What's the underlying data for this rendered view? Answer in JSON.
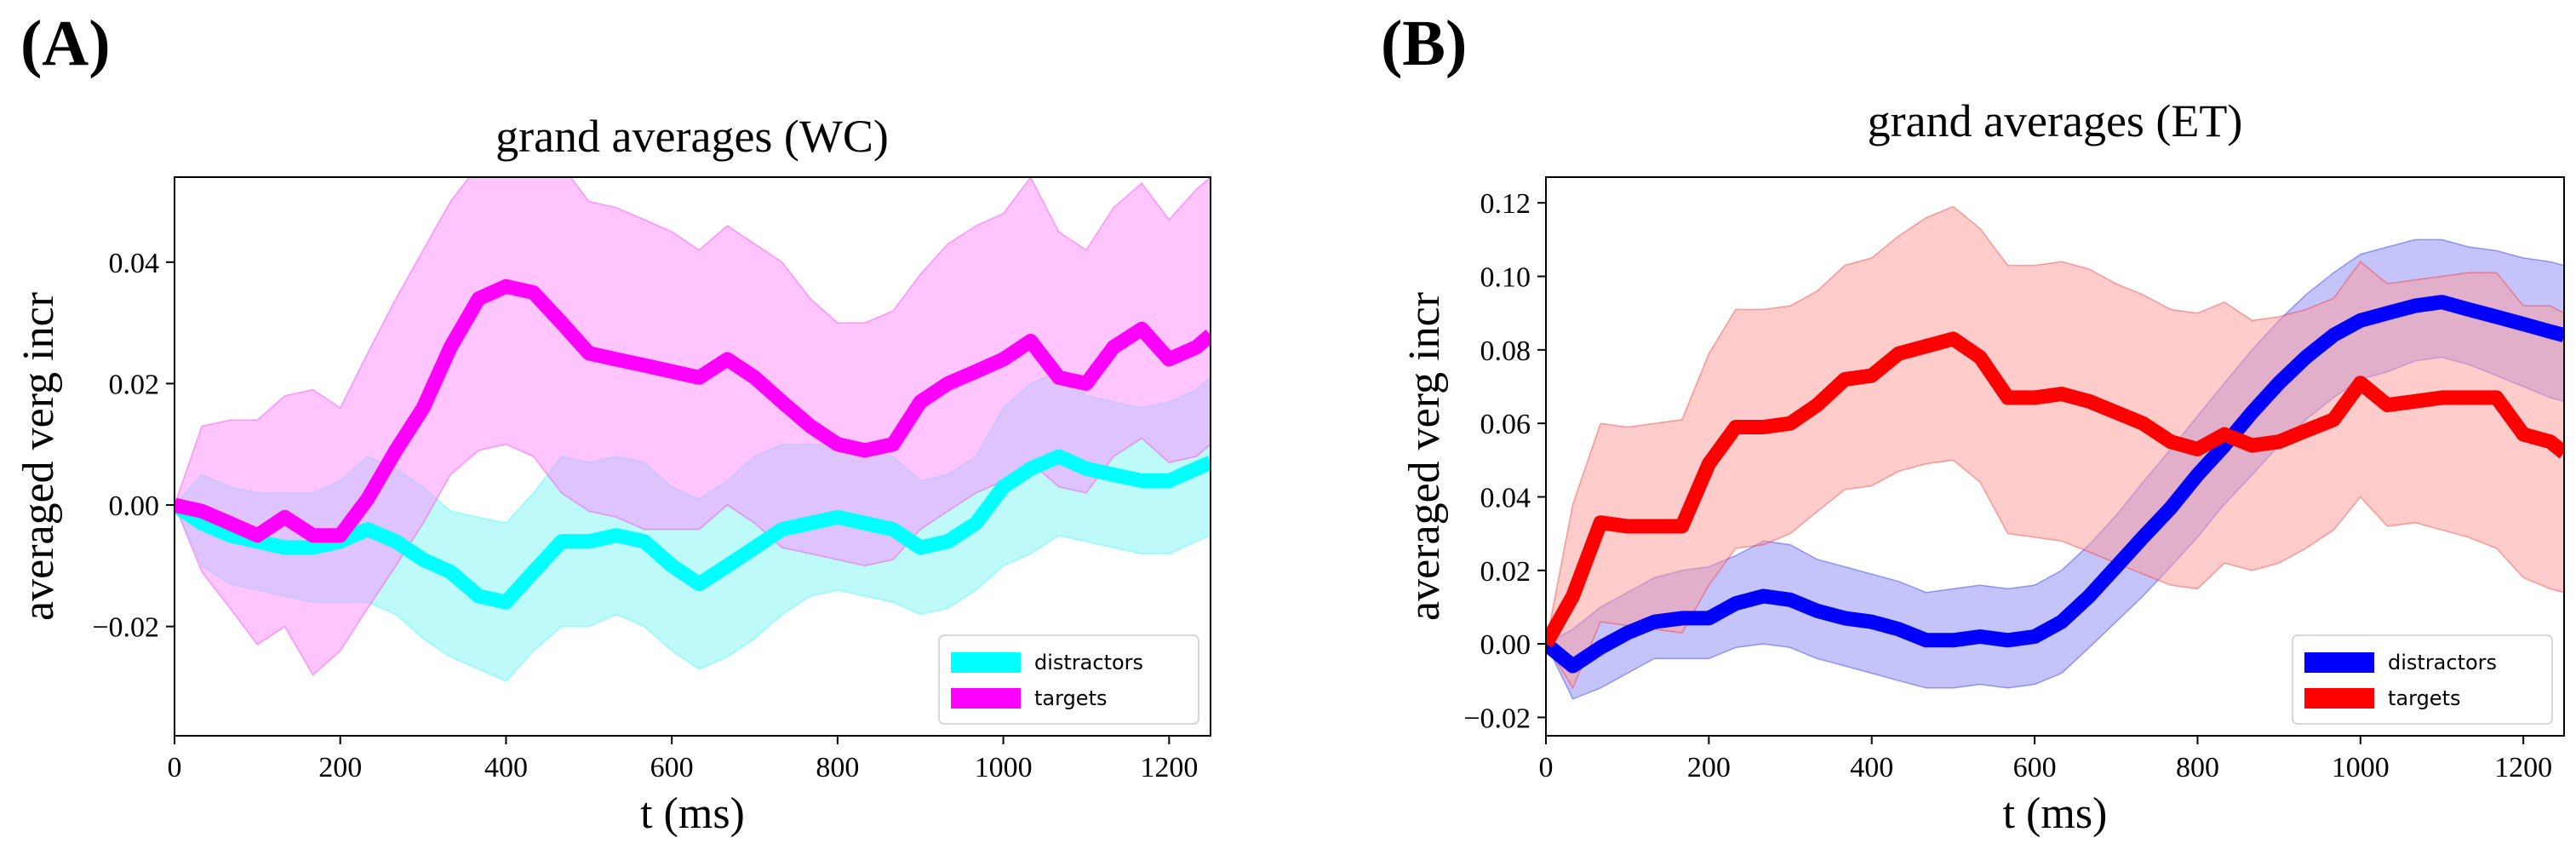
{
  "panels": [
    {
      "letter": "(A)"
    },
    {
      "letter": "(B)"
    }
  ],
  "chart_data": [
    {
      "type": "line",
      "title": "grand averages (WC)",
      "xlabel": "t (ms)",
      "ylabel": "averaged verg incr",
      "xlim": [
        0,
        1250
      ],
      "ylim": [
        -0.038,
        0.054
      ],
      "xticks": [
        0,
        200,
        400,
        600,
        800,
        1000,
        1200
      ],
      "yticks": [
        -0.02,
        0.0,
        0.02,
        0.04
      ],
      "ytick_labels": [
        "−0.02",
        "0.00",
        "0.02",
        "0.04"
      ],
      "grid": false,
      "legend_position": "bottom-right",
      "x": [
        0,
        33,
        67,
        100,
        133,
        167,
        200,
        233,
        267,
        300,
        333,
        367,
        400,
        433,
        467,
        500,
        533,
        567,
        600,
        633,
        667,
        700,
        733,
        767,
        800,
        833,
        867,
        900,
        933,
        967,
        1000,
        1033,
        1067,
        1100,
        1133,
        1167,
        1200,
        1233,
        1250
      ],
      "series": [
        {
          "name": "distractors",
          "color": "#00ffff",
          "band_color": "#7ff5f5",
          "values": [
            0,
            -0.003,
            -0.005,
            -0.006,
            -0.007,
            -0.007,
            -0.006,
            -0.004,
            -0.006,
            -0.009,
            -0.011,
            -0.015,
            -0.016,
            -0.011,
            -0.006,
            -0.006,
            -0.005,
            -0.006,
            -0.01,
            -0.013,
            -0.01,
            -0.007,
            -0.004,
            -0.003,
            -0.002,
            -0.003,
            -0.004,
            -0.007,
            -0.006,
            -0.003,
            0.003,
            0.006,
            0.008,
            0.006,
            0.005,
            0.004,
            0.004,
            0.006,
            0.007
          ],
          "lower": [
            0,
            -0.01,
            -0.013,
            -0.014,
            -0.015,
            -0.016,
            -0.016,
            -0.016,
            -0.018,
            -0.022,
            -0.025,
            -0.027,
            -0.029,
            -0.024,
            -0.02,
            -0.02,
            -0.018,
            -0.02,
            -0.024,
            -0.027,
            -0.025,
            -0.022,
            -0.018,
            -0.015,
            -0.014,
            -0.015,
            -0.016,
            -0.018,
            -0.017,
            -0.014,
            -0.01,
            -0.008,
            -0.005,
            -0.006,
            -0.007,
            -0.008,
            -0.008,
            -0.006,
            -0.005
          ],
          "upper": [
            0,
            0.005,
            0.003,
            0.002,
            0.002,
            0.002,
            0.004,
            0.008,
            0.006,
            0.003,
            -0.001,
            -0.002,
            -0.003,
            0.002,
            0.008,
            0.007,
            0.008,
            0.007,
            0.003,
            0.001,
            0.004,
            0.008,
            0.01,
            0.01,
            0.01,
            0.009,
            0.008,
            0.004,
            0.005,
            0.008,
            0.016,
            0.02,
            0.022,
            0.018,
            0.017,
            0.016,
            0.017,
            0.019,
            0.021
          ]
        },
        {
          "name": "targets",
          "color": "#ff00ff",
          "band_color": "#ff8cff",
          "values": [
            0,
            -0.001,
            -0.003,
            -0.005,
            -0.002,
            -0.005,
            -0.005,
            0.001,
            0.009,
            0.016,
            0.026,
            0.034,
            0.036,
            0.035,
            0.03,
            0.025,
            0.024,
            0.023,
            0.022,
            0.021,
            0.024,
            0.021,
            0.017,
            0.013,
            0.01,
            0.009,
            0.01,
            0.017,
            0.02,
            0.022,
            0.024,
            0.027,
            0.021,
            0.02,
            0.026,
            0.029,
            0.024,
            0.026,
            0.028
          ],
          "lower": [
            0,
            -0.011,
            -0.017,
            -0.023,
            -0.02,
            -0.028,
            -0.024,
            -0.017,
            -0.01,
            -0.003,
            0.005,
            0.009,
            0.01,
            0.008,
            0.002,
            -0.001,
            -0.002,
            -0.004,
            -0.004,
            -0.004,
            0.0,
            -0.003,
            -0.007,
            -0.008,
            -0.009,
            -0.01,
            -0.009,
            -0.004,
            -0.001,
            0.002,
            0.004,
            0.007,
            0.003,
            0.002,
            0.008,
            0.011,
            0.007,
            0.008,
            0.01
          ],
          "upper": [
            0,
            0.013,
            0.014,
            0.014,
            0.018,
            0.019,
            0.016,
            0.025,
            0.034,
            0.042,
            0.05,
            0.056,
            0.06,
            0.06,
            0.056,
            0.05,
            0.049,
            0.047,
            0.045,
            0.042,
            0.046,
            0.043,
            0.04,
            0.034,
            0.03,
            0.03,
            0.032,
            0.038,
            0.043,
            0.046,
            0.048,
            0.054,
            0.045,
            0.042,
            0.049,
            0.053,
            0.047,
            0.052,
            0.054
          ]
        }
      ]
    },
    {
      "type": "line",
      "title": "grand averages (ET)",
      "xlabel": "t (ms)",
      "ylabel": "averaged verg incr",
      "xlim": [
        0,
        1250
      ],
      "ylim": [
        -0.025,
        0.127
      ],
      "xticks": [
        0,
        200,
        400,
        600,
        800,
        1000,
        1200
      ],
      "yticks": [
        -0.02,
        0.0,
        0.02,
        0.04,
        0.06,
        0.08,
        0.1,
        0.12
      ],
      "ytick_labels": [
        "−0.02",
        "0.00",
        "0.02",
        "0.04",
        "0.06",
        "0.08",
        "0.10",
        "0.12"
      ],
      "grid": false,
      "legend_position": "bottom-right",
      "x": [
        0,
        33,
        67,
        100,
        133,
        167,
        200,
        233,
        267,
        300,
        333,
        367,
        400,
        433,
        467,
        500,
        533,
        567,
        600,
        633,
        667,
        700,
        733,
        767,
        800,
        833,
        867,
        900,
        933,
        967,
        1000,
        1033,
        1067,
        1100,
        1133,
        1167,
        1200,
        1233,
        1250
      ],
      "series": [
        {
          "name": "distractors",
          "color": "#0000ff",
          "band_color": "#8a8af5",
          "values": [
            0,
            -0.006,
            -0.001,
            0.003,
            0.006,
            0.007,
            0.007,
            0.011,
            0.013,
            0.012,
            0.009,
            0.007,
            0.006,
            0.004,
            0.001,
            0.001,
            0.002,
            0.001,
            0.002,
            0.006,
            0.013,
            0.021,
            0.029,
            0.037,
            0.046,
            0.054,
            0.063,
            0.071,
            0.078,
            0.084,
            0.088,
            0.09,
            0.092,
            0.093,
            0.091,
            0.089,
            0.087,
            0.085,
            0.084
          ],
          "lower": [
            0,
            -0.015,
            -0.012,
            -0.008,
            -0.004,
            -0.004,
            -0.004,
            -0.001,
            0.0,
            -0.001,
            -0.004,
            -0.006,
            -0.008,
            -0.01,
            -0.012,
            -0.012,
            -0.011,
            -0.012,
            -0.011,
            -0.008,
            -0.001,
            0.006,
            0.013,
            0.021,
            0.029,
            0.038,
            0.046,
            0.054,
            0.061,
            0.067,
            0.072,
            0.074,
            0.077,
            0.078,
            0.076,
            0.073,
            0.07,
            0.067,
            0.066
          ],
          "upper": [
            0,
            0.004,
            0.01,
            0.014,
            0.018,
            0.02,
            0.021,
            0.024,
            0.028,
            0.027,
            0.023,
            0.021,
            0.019,
            0.017,
            0.014,
            0.015,
            0.016,
            0.015,
            0.016,
            0.02,
            0.027,
            0.035,
            0.044,
            0.053,
            0.062,
            0.071,
            0.08,
            0.088,
            0.095,
            0.101,
            0.106,
            0.108,
            0.11,
            0.11,
            0.108,
            0.107,
            0.105,
            0.104,
            0.103
          ]
        },
        {
          "name": "targets",
          "color": "#ff0000",
          "band_color": "#ff9a9a",
          "values": [
            0,
            0.013,
            0.033,
            0.032,
            0.032,
            0.032,
            0.049,
            0.059,
            0.059,
            0.06,
            0.065,
            0.072,
            0.073,
            0.079,
            0.081,
            0.083,
            0.078,
            0.067,
            0.067,
            0.068,
            0.066,
            0.063,
            0.06,
            0.055,
            0.053,
            0.057,
            0.054,
            0.055,
            0.058,
            0.061,
            0.071,
            0.065,
            0.066,
            0.067,
            0.067,
            0.067,
            0.057,
            0.055,
            0.052
          ],
          "lower": [
            0,
            -0.012,
            0.006,
            0.005,
            0.004,
            0.003,
            0.016,
            0.026,
            0.027,
            0.03,
            0.036,
            0.042,
            0.043,
            0.047,
            0.049,
            0.05,
            0.044,
            0.03,
            0.029,
            0.028,
            0.025,
            0.022,
            0.019,
            0.016,
            0.015,
            0.022,
            0.02,
            0.022,
            0.026,
            0.031,
            0.04,
            0.032,
            0.033,
            0.031,
            0.029,
            0.026,
            0.018,
            0.015,
            0.014
          ],
          "upper": [
            0,
            0.038,
            0.06,
            0.059,
            0.06,
            0.061,
            0.079,
            0.091,
            0.091,
            0.092,
            0.096,
            0.103,
            0.105,
            0.111,
            0.116,
            0.119,
            0.113,
            0.103,
            0.103,
            0.104,
            0.102,
            0.098,
            0.095,
            0.091,
            0.09,
            0.093,
            0.088,
            0.089,
            0.091,
            0.094,
            0.104,
            0.098,
            0.099,
            0.1,
            0.101,
            0.101,
            0.092,
            0.092,
            0.09
          ]
        }
      ]
    }
  ]
}
